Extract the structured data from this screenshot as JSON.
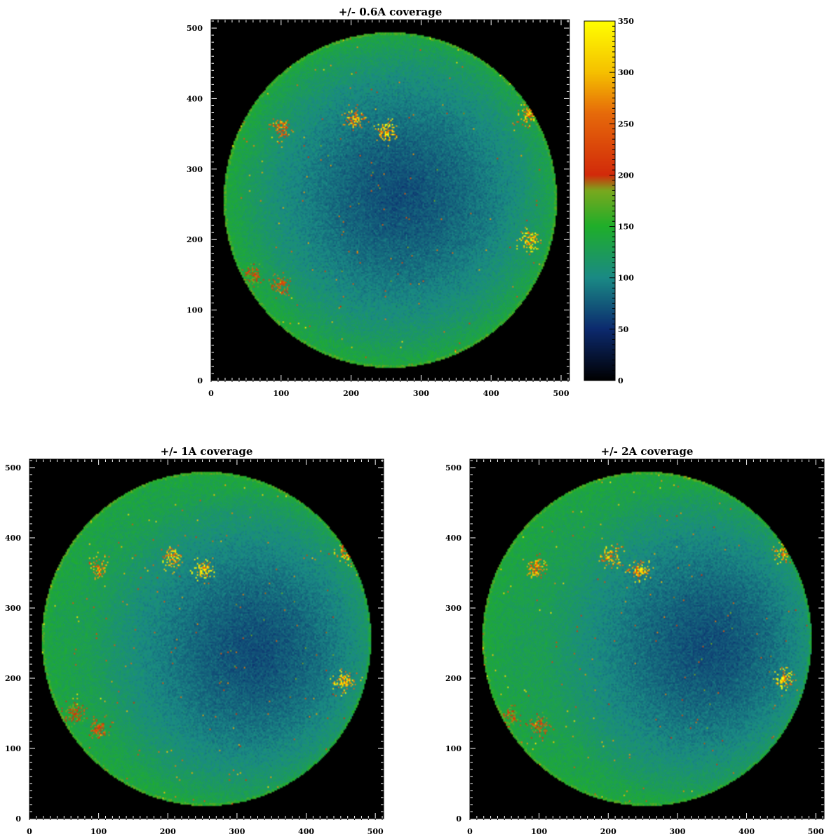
{
  "chart_data": [
    {
      "type": "heatmap",
      "title": "+/- 0.6A coverage",
      "xlabel": "",
      "ylabel": "",
      "xlim": [
        0,
        512
      ],
      "ylim": [
        0,
        512
      ],
      "x_ticks": [
        "0",
        "100",
        "200",
        "300",
        "400",
        "500"
      ],
      "y_ticks": [
        "0",
        "100",
        "200",
        "300",
        "400",
        "500"
      ],
      "disk": {
        "center_x": 256,
        "center_y": 256,
        "radius": 238
      },
      "dark_center": {
        "x": 270,
        "y": 262
      },
      "active_regions": [
        {
          "x": 205,
          "y": 372,
          "peak": 320
        },
        {
          "x": 250,
          "y": 353,
          "peak": 340
        },
        {
          "x": 455,
          "y": 198,
          "peak": 340
        },
        {
          "x": 455,
          "y": 378,
          "peak": 320
        },
        {
          "x": 100,
          "y": 357,
          "peak": 300
        },
        {
          "x": 100,
          "y": 135,
          "peak": 240
        },
        {
          "x": 60,
          "y": 150,
          "peak": 220
        }
      ]
    },
    {
      "type": "heatmap",
      "title": "+/- 1A coverage",
      "xlabel": "",
      "ylabel": "",
      "xlim": [
        0,
        512
      ],
      "ylim": [
        0,
        512
      ],
      "x_ticks": [
        "0",
        "100",
        "200",
        "300",
        "400",
        "500"
      ],
      "y_ticks": [
        "0",
        "100",
        "200",
        "300",
        "400",
        "500"
      ],
      "disk": {
        "center_x": 256,
        "center_y": 256,
        "radius": 238
      },
      "dark_center": {
        "x": 325,
        "y": 238
      },
      "active_regions": [
        {
          "x": 205,
          "y": 372,
          "peak": 320
        },
        {
          "x": 252,
          "y": 354,
          "peak": 340
        },
        {
          "x": 455,
          "y": 196,
          "peak": 340
        },
        {
          "x": 458,
          "y": 378,
          "peak": 320
        },
        {
          "x": 100,
          "y": 357,
          "peak": 300
        },
        {
          "x": 100,
          "y": 128,
          "peak": 240
        },
        {
          "x": 65,
          "y": 150,
          "peak": 220
        }
      ]
    },
    {
      "type": "heatmap",
      "title": "+/- 2A coverage",
      "xlabel": "",
      "ylabel": "",
      "xlim": [
        0,
        512
      ],
      "ylim": [
        0,
        512
      ],
      "x_ticks": [
        "0",
        "100",
        "200",
        "300",
        "400",
        "500"
      ],
      "y_ticks": [
        "0",
        "100",
        "200",
        "300",
        "400",
        "500"
      ],
      "disk": {
        "center_x": 256,
        "center_y": 256,
        "radius": 238
      },
      "dark_center": {
        "x": 345,
        "y": 245
      },
      "active_regions": [
        {
          "x": 205,
          "y": 374,
          "peak": 320
        },
        {
          "x": 245,
          "y": 354,
          "peak": 330
        },
        {
          "x": 455,
          "y": 198,
          "peak": 340
        },
        {
          "x": 455,
          "y": 378,
          "peak": 320
        },
        {
          "x": 95,
          "y": 357,
          "peak": 300
        },
        {
          "x": 100,
          "y": 132,
          "peak": 240
        },
        {
          "x": 60,
          "y": 145,
          "peak": 220
        }
      ]
    }
  ],
  "colorbar": {
    "range": [
      0,
      350
    ],
    "tick_values": [
      0,
      50,
      100,
      150,
      200,
      250,
      300,
      350
    ],
    "tick_labels": [
      "0",
      "50",
      "100",
      "150",
      "200",
      "250",
      "300",
      "350"
    ],
    "colormap": [
      {
        "value": 0,
        "color": "#000000"
      },
      {
        "value": 50,
        "color": "#0c2a6e"
      },
      {
        "value": 100,
        "color": "#1a8a85"
      },
      {
        "value": 150,
        "color": "#1fae2a"
      },
      {
        "value": 185,
        "color": "#7aa81e"
      },
      {
        "value": 200,
        "color": "#d22a0a"
      },
      {
        "value": 260,
        "color": "#e66a0a"
      },
      {
        "value": 300,
        "color": "#f5c000"
      },
      {
        "value": 350,
        "color": "#ffff00"
      }
    ]
  },
  "background_color": "#000000"
}
